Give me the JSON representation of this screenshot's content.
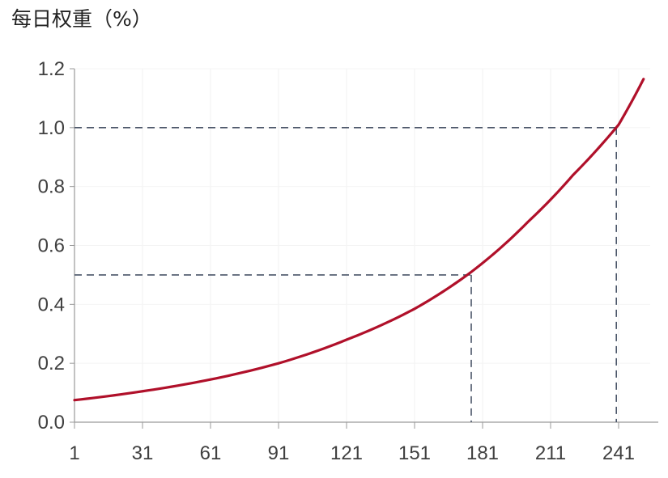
{
  "chart_data": {
    "type": "line",
    "title": "每日权重（%）",
    "xlabel": "",
    "ylabel": "",
    "x_ticks": [
      1,
      31,
      61,
      91,
      121,
      151,
      181,
      211,
      241
    ],
    "y_ticks": [
      "0.0",
      "0.2",
      "0.4",
      "0.6",
      "0.8",
      "1.0",
      "1.2"
    ],
    "xlim": [
      1,
      252
    ],
    "ylim": [
      0,
      1.2
    ],
    "grid": true,
    "series": [
      {
        "color": "#b0102a",
        "x": [
          1,
          31,
          61,
          91,
          121,
          151,
          176,
          201,
          221,
          241,
          252
        ],
        "y": [
          0.075,
          0.105,
          0.145,
          0.2,
          0.28,
          0.385,
          0.51,
          0.68,
          0.84,
          1.01,
          1.165
        ]
      }
    ],
    "reference_lines": [
      {
        "x": 176,
        "y": 0.5,
        "color": "#4a5568",
        "style": "dashed"
      },
      {
        "x": 240,
        "y": 1.0,
        "color": "#4a5568",
        "style": "dashed"
      }
    ]
  }
}
